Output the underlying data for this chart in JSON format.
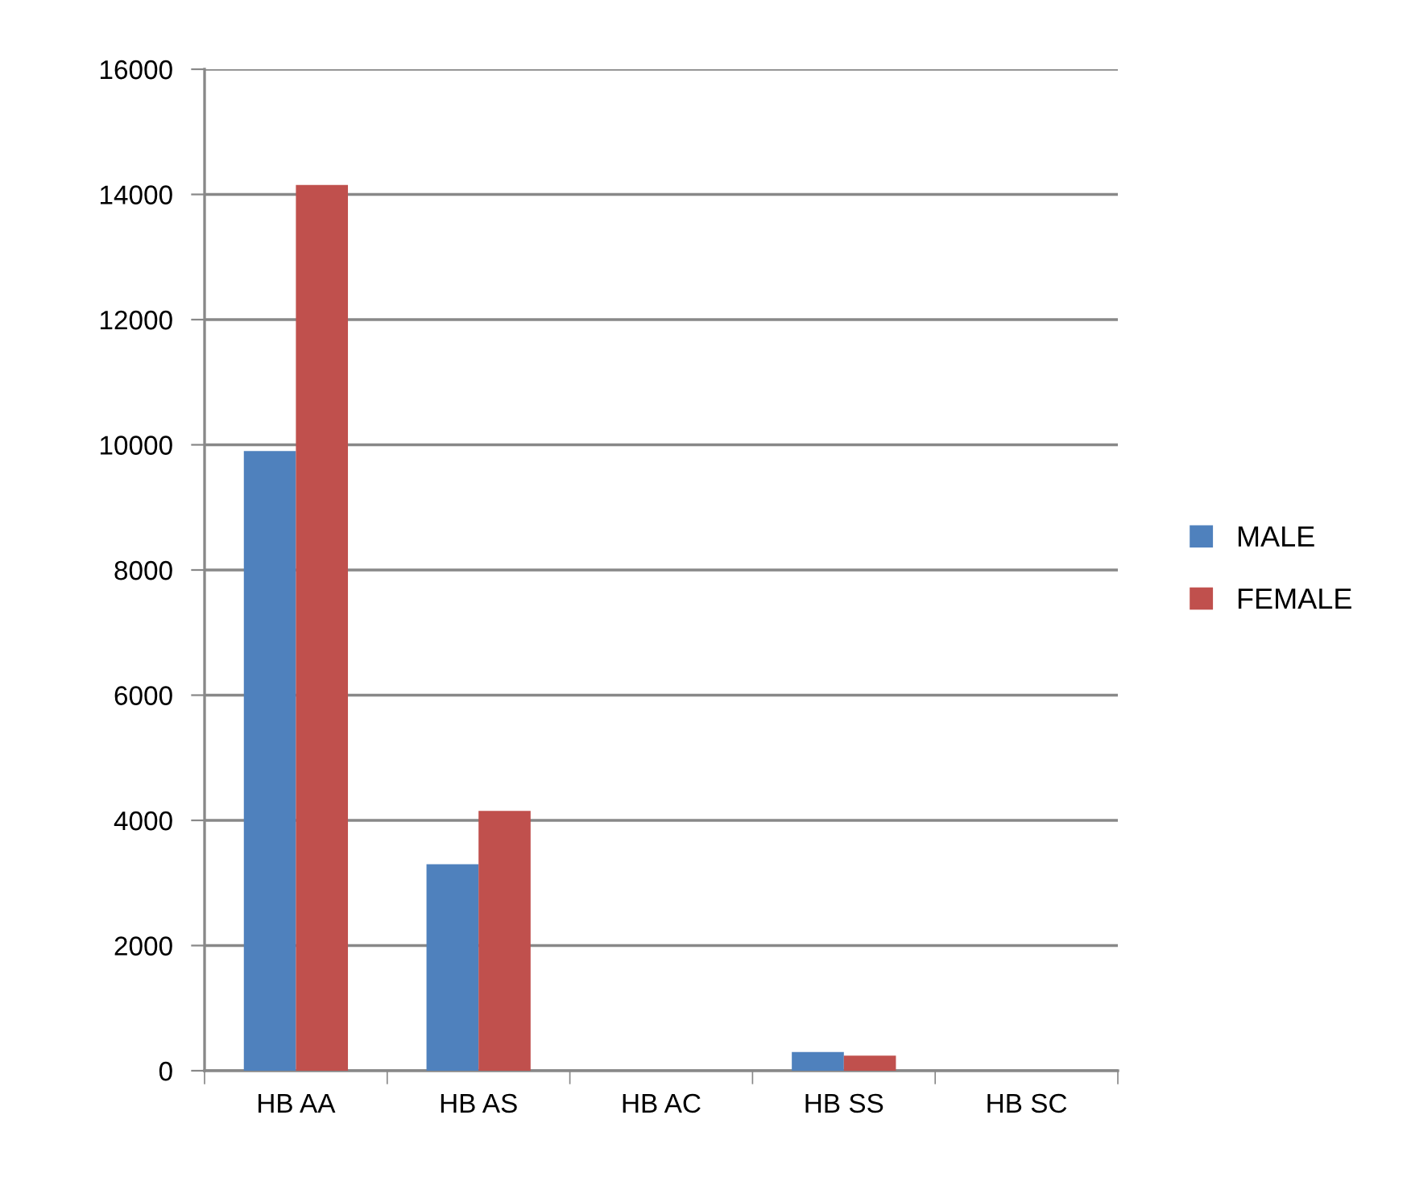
{
  "chart_data": {
    "type": "bar",
    "categories": [
      "HB AA",
      "HB AS",
      "HB AC",
      "HB SS",
      "HB SC"
    ],
    "series": [
      {
        "name": "MALE",
        "color": "#4f81bd",
        "values": [
          9900,
          3300,
          0,
          300,
          0
        ]
      },
      {
        "name": "FEMALE",
        "color": "#c0504d",
        "values": [
          14150,
          4150,
          0,
          240,
          0
        ]
      }
    ],
    "ylim": [
      0,
      16000
    ],
    "yticks": [
      0,
      2000,
      4000,
      6000,
      8000,
      10000,
      12000,
      14000,
      16000
    ],
    "grid": "y",
    "legend": "right"
  }
}
